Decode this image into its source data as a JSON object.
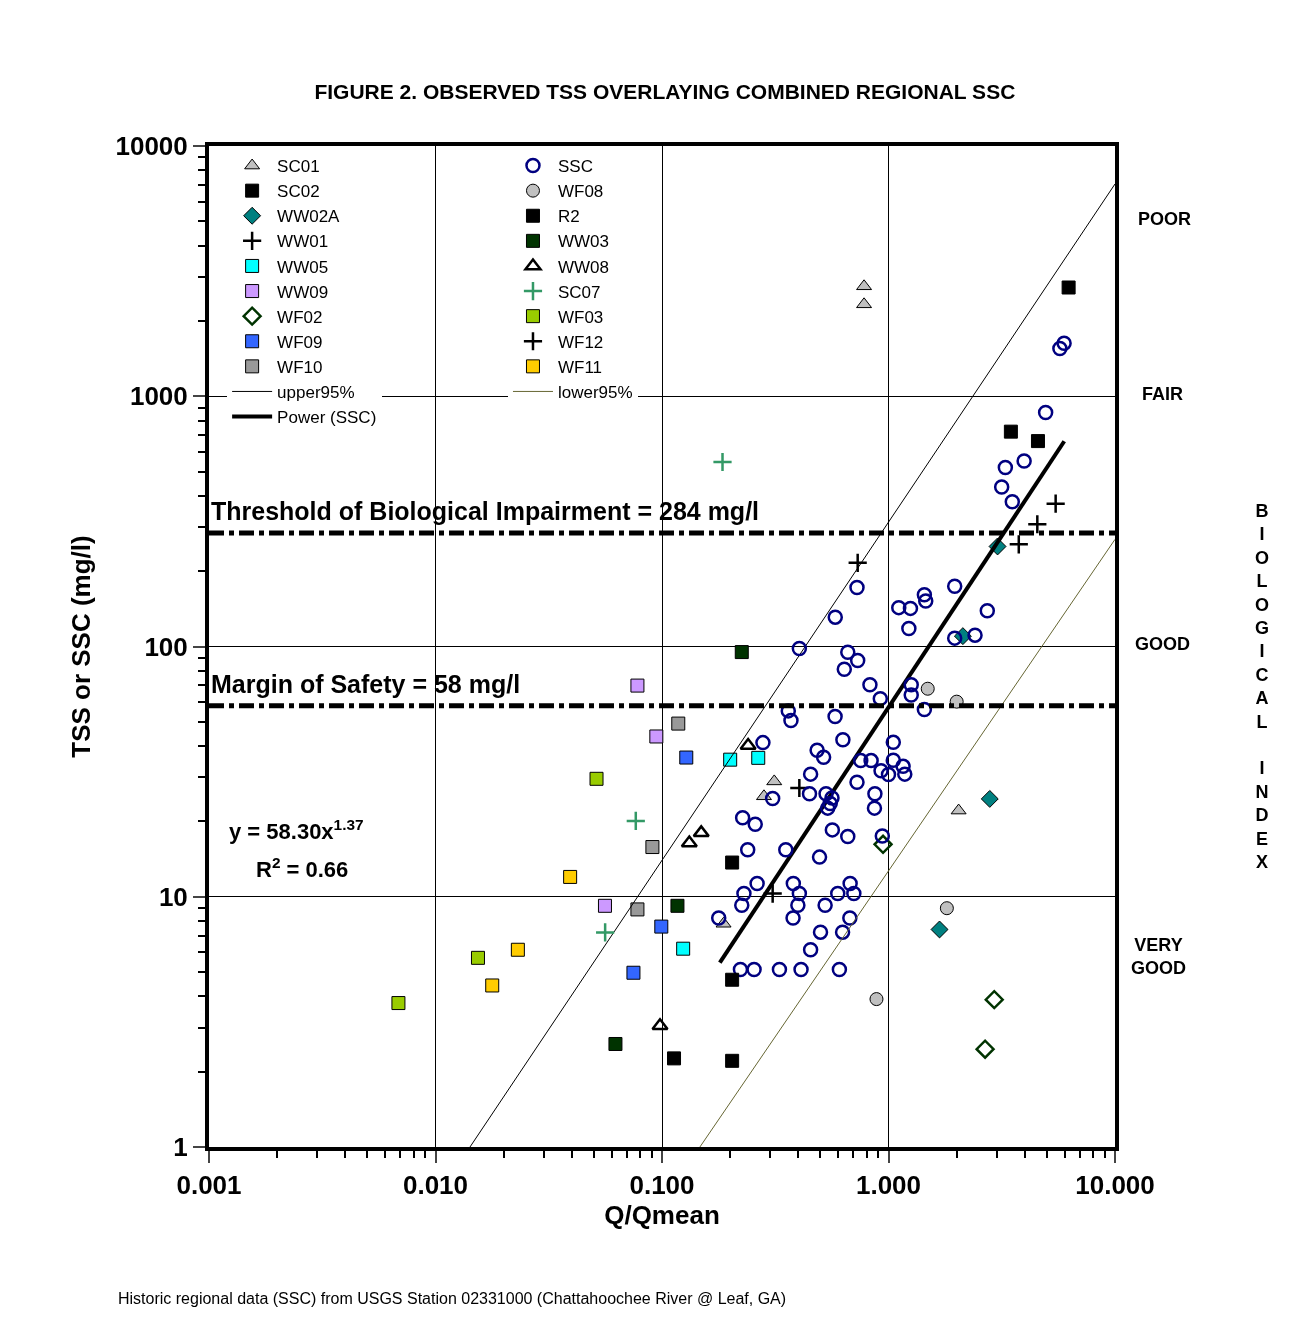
{
  "chart_data": {
    "type": "scatter",
    "title": "FIGURE 2. OBSERVED TSS OVERLAYING COMBINED REGIONAL SSC",
    "xlabel": "Q/Qmean",
    "ylabel": "TSS or SSC (mg/l)",
    "log": "xy",
    "grid": true,
    "legend": "top left",
    "xlim": [
      0.001,
      10
    ],
    "ylim": [
      1,
      10000
    ],
    "xticks": [
      {
        "value": 0.001,
        "label": "0.001"
      },
      {
        "value": 0.01,
        "label": "0.010"
      },
      {
        "value": 0.1,
        "label": "0.100"
      },
      {
        "value": 1,
        "label": "1.000"
      },
      {
        "value": 10,
        "label": "10.000"
      }
    ],
    "yticks": [
      1,
      10,
      100,
      1000,
      10000
    ],
    "series": [
      {
        "name": "SC01",
        "color": "#c0c0c0",
        "marker": "triangle",
        "x": [
          0.78,
          0.78,
          0.313,
          0.282,
          2.04,
          0.187
        ],
        "values": [
          2750,
          2330,
          28.9,
          25.2,
          22.1,
          7.8
        ]
      },
      {
        "name": "SC02",
        "color": "#000000",
        "marker": "square",
        "x": [
          6.24,
          3.47,
          4.57
        ],
        "values": [
          2720,
          722,
          662
        ]
      },
      {
        "name": "WW02A",
        "color": "#008080",
        "marker": "diamond",
        "x": [
          3.03,
          2.13,
          2.8,
          1.68
        ],
        "values": [
          251,
          110,
          24.6,
          7.4
        ]
      },
      {
        "name": "WW01",
        "color": "#000000",
        "marker": "cross",
        "x": [
          0.731,
          0.404,
          0.308
        ],
        "values": [
          216,
          27.2,
          10.3
        ]
      },
      {
        "name": "WW05",
        "color": "#00ffff",
        "marker": "square",
        "x": [
          0.2,
          0.266,
          0.124
        ],
        "values": [
          35.3,
          35.9,
          6.2
        ]
      },
      {
        "name": "WW09",
        "color": "#cc99ff",
        "marker": "square",
        "x": [
          0.0779,
          0.0944,
          0.056
        ],
        "values": [
          69.8,
          43.7,
          9.2
        ]
      },
      {
        "name": "WF02",
        "color": "#003300",
        "marker": "diamond-open",
        "x": [
          0.946,
          2.93,
          2.67
        ],
        "values": [
          16.2,
          3.88,
          2.46
        ]
      },
      {
        "name": "WF09",
        "color": "#3366ff",
        "marker": "square",
        "x": [
          0.128,
          0.0993,
          0.0748
        ],
        "values": [
          36.0,
          7.6,
          4.97
        ]
      },
      {
        "name": "WF10",
        "color": "#999999",
        "marker": "square",
        "x": [
          0.118,
          0.0907,
          0.0779
        ],
        "values": [
          49.2,
          15.8,
          8.9
        ]
      },
      {
        "name": "upper95%",
        "type": "line",
        "color": "#000000",
        "line_style": "solid",
        "marker": "none",
        "x": [
          0.0142,
          10
        ],
        "values": [
          1,
          7050
        ]
      },
      {
        "name": "Power (SSC)",
        "type": "line",
        "color": "#000000",
        "line_style": "solid",
        "marker": "none",
        "x": [
          0.18,
          5.97
        ],
        "values": [
          5.45,
          661
        ]
      },
      {
        "name": "SSC",
        "color": "#000080",
        "marker": "circle-open",
        "x": [
          5.96,
          5.71,
          4.94,
          3.97,
          3.28,
          3.16,
          3.52,
          0.726,
          0.582,
          1.96,
          1.11,
          1.25,
          1.44,
          1.46,
          1.23,
          2.73,
          1.96,
          2.41,
          0.404,
          0.661,
          0.731,
          0.638,
          0.828,
          0.92,
          1.26,
          1.26,
          1.44,
          0.361,
          0.371,
          0.581,
          0.629,
          0.279,
          0.484,
          0.517,
          1.05,
          1.05,
          0.754,
          0.838,
          0.927,
          1.0,
          1.16,
          1.18,
          0.453,
          0.726,
          0.448,
          0.53,
          0.563,
          0.553,
          0.539,
          0.871,
          0.867,
          0.308,
          0.227,
          0.258,
          0.565,
          0.661,
          0.939,
          0.239,
          0.352,
          0.496,
          0.263,
          0.38,
          0.677,
          0.23,
          0.404,
          0.597,
          0.703,
          0.225,
          0.398,
          0.525,
          0.178,
          0.379,
          0.675,
          0.501,
          0.627,
          0.453,
          0.222,
          0.255,
          0.33,
          0.411,
          0.607
        ],
        "values": [
          1629,
          1552,
          861,
          551,
          519,
          434,
          379,
          172,
          131,
          174,
          143,
          142,
          161,
          152,
          118,
          139,
          108,
          111,
          98.2,
          94.8,
          87.9,
          81.1,
          70.3,
          61.9,
          70.3,
          64.0,
          56.0,
          55.3,
          50.6,
          52.5,
          42.4,
          41.3,
          38.5,
          36.1,
          41.4,
          35.1,
          35.0,
          35.0,
          31.9,
          30.8,
          33.2,
          30.9,
          30.9,
          28.7,
          25.8,
          25.8,
          24.8,
          23.6,
          22.6,
          25.8,
          22.6,
          24.7,
          20.7,
          19.5,
          18.5,
          17.4,
          17.5,
          15.4,
          15.4,
          14.4,
          11.3,
          11.3,
          11.3,
          10.3,
          10.3,
          10.3,
          10.3,
          9.25,
          9.25,
          9.25,
          8.22,
          8.22,
          8.22,
          7.22,
          7.22,
          6.14,
          5.12,
          5.12,
          5.12,
          5.12,
          5.12
        ]
      },
      {
        "name": "WF08",
        "color": "#c0c0c0",
        "marker": "circle",
        "x": [
          1.49,
          2.0,
          1.81,
          0.885
        ],
        "values": [
          67.8,
          60.2,
          9.0,
          3.9
        ]
      },
      {
        "name": "R2",
        "color": "#000000",
        "marker": "square",
        "x": [
          0.204,
          0.204,
          0.204,
          0.113
        ],
        "values": [
          13.7,
          4.66,
          2.21,
          2.26
        ]
      },
      {
        "name": "WW03",
        "color": "#003300",
        "marker": "square",
        "x": [
          0.225,
          0.117,
          0.0623
        ],
        "values": [
          95,
          9.2,
          2.58
        ]
      },
      {
        "name": "WW08",
        "color": "#000000",
        "marker": "triangle-open",
        "x": [
          0.24,
          0.149,
          0.132,
          0.098
        ],
        "values": [
          40.2,
          18.0,
          16.4,
          3.05
        ]
      },
      {
        "name": "SC07",
        "color": "#339966",
        "marker": "cross",
        "x": [
          0.185,
          0.0766,
          0.0561
        ],
        "values": [
          546,
          20.1,
          7.2
        ]
      },
      {
        "name": "WF03",
        "color": "#99cc00",
        "marker": "square",
        "x": [
          0.0514,
          0.0154,
          0.00686
        ],
        "values": [
          29.6,
          5.7,
          3.76
        ]
      },
      {
        "name": "WF12",
        "color": "#000000",
        "marker": "cross",
        "x": [
          5.47,
          4.54,
          3.76
        ],
        "values": [
          372,
          308,
          256
        ]
      },
      {
        "name": "WF11",
        "color": "#ffcc00",
        "marker": "square",
        "x": [
          0.0393,
          0.0231,
          0.0178
        ],
        "values": [
          12.0,
          6.14,
          4.42
        ]
      },
      {
        "name": "lower95%",
        "type": "line",
        "color": "#666633",
        "line_style": "solid",
        "marker": "none",
        "x": [
          0.147,
          10
        ],
        "values": [
          1,
          268
        ]
      }
    ],
    "ref_lines": [
      {
        "axis": "y",
        "value": 284,
        "label": "Threshold of Biological Impairment = 284 mg/l",
        "color": "#000000",
        "line_style": "dashdot"
      },
      {
        "axis": "y",
        "value": 58,
        "label": "Margin of Safety = 58 mg/l",
        "color": "#000000",
        "line_style": "dashdot"
      }
    ],
    "annotations": [
      "y = 58.30x$^{1.37}$",
      "R$^{2}$ = 0.66",
      "Historic regional data (SSC) from USGS Station 02331000 (Chattahoochee River @ Leaf, GA)",
      "POOR",
      "FAIR",
      "GOOD",
      "VERY GOOD",
      "BIOLOGICAL INDEX"
    ]
  }
}
